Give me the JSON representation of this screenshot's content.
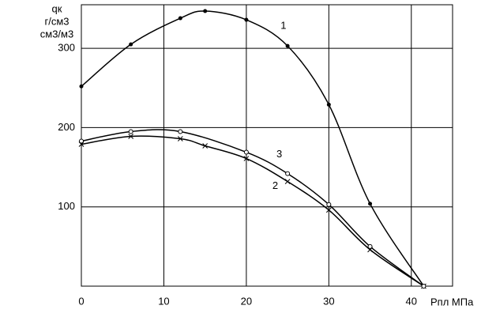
{
  "chart_data": {
    "type": "line",
    "ylabel": [
      "qк",
      "г/см3",
      "см3/м3"
    ],
    "xlabel": "Pпл МПа",
    "xlim": [
      0,
      45
    ],
    "ylim": [
      0,
      355
    ],
    "xticks": [
      0,
      10,
      20,
      30,
      40
    ],
    "yticks": [
      100,
      200,
      300
    ],
    "grid": true,
    "series": [
      {
        "name": "1",
        "color": "#000000",
        "marker": "dot",
        "label_at": [
          24.5,
          328
        ],
        "x": [
          0,
          6,
          12,
          15,
          20,
          25,
          30,
          35,
          41.5
        ],
        "values": [
          252,
          305,
          338,
          347,
          336,
          303,
          229,
          104,
          0
        ]
      },
      {
        "name": "2",
        "color": "#000000",
        "marker": "cross",
        "label_at": [
          23.5,
          126
        ],
        "x": [
          0,
          6,
          12,
          15,
          20,
          25,
          30,
          35,
          41.5
        ],
        "values": [
          179,
          189,
          186,
          177,
          161,
          132,
          96,
          46,
          0
        ]
      },
      {
        "name": "3",
        "color": "#000000",
        "marker": "circle",
        "label_at": [
          24,
          166
        ],
        "x": [
          0,
          6,
          12,
          20,
          25,
          30,
          35,
          41.5
        ],
        "values": [
          183,
          195,
          195,
          169,
          142,
          103,
          50,
          0
        ]
      }
    ]
  }
}
